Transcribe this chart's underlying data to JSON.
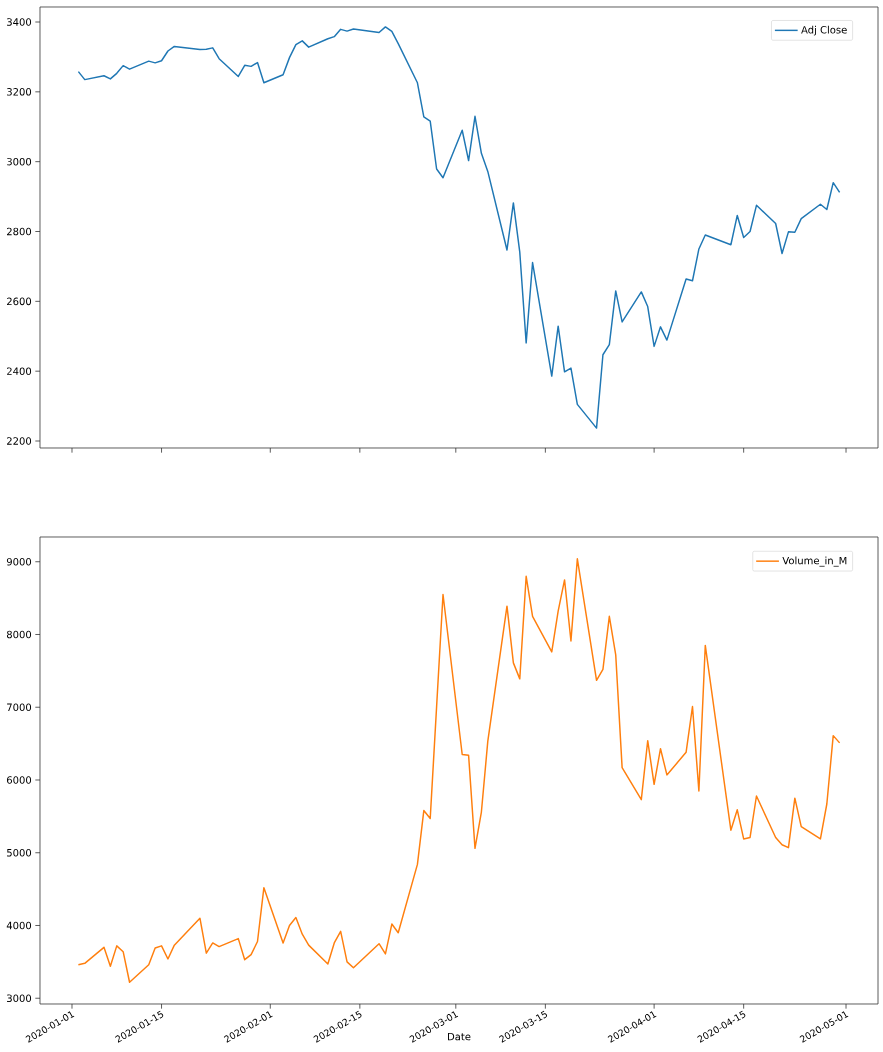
{
  "chart_data": [
    {
      "type": "line",
      "x": [
        "2020-01-02",
        "2020-01-03",
        "2020-01-06",
        "2020-01-07",
        "2020-01-08",
        "2020-01-09",
        "2020-01-10",
        "2020-01-13",
        "2020-01-14",
        "2020-01-15",
        "2020-01-16",
        "2020-01-17",
        "2020-01-21",
        "2020-01-22",
        "2020-01-23",
        "2020-01-24",
        "2020-01-27",
        "2020-01-28",
        "2020-01-29",
        "2020-01-30",
        "2020-01-31",
        "2020-02-03",
        "2020-02-04",
        "2020-02-05",
        "2020-02-06",
        "2020-02-07",
        "2020-02-10",
        "2020-02-11",
        "2020-02-12",
        "2020-02-13",
        "2020-02-14",
        "2020-02-18",
        "2020-02-19",
        "2020-02-20",
        "2020-02-21",
        "2020-02-24",
        "2020-02-25",
        "2020-02-26",
        "2020-02-27",
        "2020-02-28",
        "2020-03-02",
        "2020-03-03",
        "2020-03-04",
        "2020-03-05",
        "2020-03-06",
        "2020-03-09",
        "2020-03-10",
        "2020-03-11",
        "2020-03-12",
        "2020-03-13",
        "2020-03-16",
        "2020-03-17",
        "2020-03-18",
        "2020-03-19",
        "2020-03-20",
        "2020-03-23",
        "2020-03-24",
        "2020-03-25",
        "2020-03-26",
        "2020-03-27",
        "2020-03-30",
        "2020-03-31",
        "2020-04-01",
        "2020-04-02",
        "2020-04-03",
        "2020-04-06",
        "2020-04-07",
        "2020-04-08",
        "2020-04-09",
        "2020-04-13",
        "2020-04-14",
        "2020-04-15",
        "2020-04-16",
        "2020-04-17",
        "2020-04-20",
        "2020-04-21",
        "2020-04-22",
        "2020-04-23",
        "2020-04-24",
        "2020-04-27",
        "2020-04-28",
        "2020-04-29",
        "2020-04-30"
      ],
      "series": [
        {
          "name": "Adj Close",
          "color": "#1f77b4",
          "values": [
            3258,
            3235,
            3246,
            3237,
            3253,
            3275,
            3265,
            3288,
            3283,
            3289,
            3317,
            3330,
            3321,
            3322,
            3326,
            3295,
            3244,
            3276,
            3273,
            3284,
            3226,
            3249,
            3298,
            3335,
            3346,
            3328,
            3352,
            3358,
            3379,
            3374,
            3380,
            3370,
            3386,
            3373,
            3338,
            3226,
            3128,
            3116,
            2979,
            2954,
            3090,
            3003,
            3130,
            3024,
            2972,
            2747,
            2882,
            2741,
            2481,
            2711,
            2386,
            2529,
            2398,
            2409,
            2305,
            2237,
            2447,
            2476,
            2630,
            2541,
            2627,
            2585,
            2471,
            2527,
            2489,
            2664,
            2659,
            2750,
            2790,
            2762,
            2846,
            2783,
            2800,
            2875,
            2823,
            2737,
            2799,
            2798,
            2837,
            2878,
            2863,
            2940,
            2912
          ]
        }
      ],
      "xlim": [
        "2019-12-27",
        "2020-05-06"
      ],
      "xticks": [
        "2020-01-01",
        "2020-01-15",
        "2020-02-01",
        "2020-02-15",
        "2020-03-01",
        "2020-03-15",
        "2020-04-01",
        "2020-04-15",
        "2020-05-01"
      ],
      "ylim": [
        2180,
        3443
      ],
      "yticks": [
        2200,
        2400,
        2600,
        2800,
        3000,
        3200,
        3400
      ],
      "tick_labels": "y",
      "legend": "top right"
    },
    {
      "type": "line",
      "xlabel": "Date",
      "x": [
        "2020-01-02",
        "2020-01-03",
        "2020-01-06",
        "2020-01-07",
        "2020-01-08",
        "2020-01-09",
        "2020-01-10",
        "2020-01-13",
        "2020-01-14",
        "2020-01-15",
        "2020-01-16",
        "2020-01-17",
        "2020-01-21",
        "2020-01-22",
        "2020-01-23",
        "2020-01-24",
        "2020-01-27",
        "2020-01-28",
        "2020-01-29",
        "2020-01-30",
        "2020-01-31",
        "2020-02-03",
        "2020-02-04",
        "2020-02-05",
        "2020-02-06",
        "2020-02-07",
        "2020-02-10",
        "2020-02-11",
        "2020-02-12",
        "2020-02-13",
        "2020-02-14",
        "2020-02-18",
        "2020-02-19",
        "2020-02-20",
        "2020-02-21",
        "2020-02-24",
        "2020-02-25",
        "2020-02-26",
        "2020-02-27",
        "2020-02-28",
        "2020-03-02",
        "2020-03-03",
        "2020-03-04",
        "2020-03-05",
        "2020-03-06",
        "2020-03-09",
        "2020-03-10",
        "2020-03-11",
        "2020-03-12",
        "2020-03-13",
        "2020-03-16",
        "2020-03-17",
        "2020-03-18",
        "2020-03-19",
        "2020-03-20",
        "2020-03-23",
        "2020-03-24",
        "2020-03-25",
        "2020-03-26",
        "2020-03-27",
        "2020-03-30",
        "2020-03-31",
        "2020-04-01",
        "2020-04-02",
        "2020-04-03",
        "2020-04-06",
        "2020-04-07",
        "2020-04-08",
        "2020-04-09",
        "2020-04-13",
        "2020-04-14",
        "2020-04-15",
        "2020-04-16",
        "2020-04-17",
        "2020-04-20",
        "2020-04-21",
        "2020-04-22",
        "2020-04-23",
        "2020-04-24",
        "2020-04-27",
        "2020-04-28",
        "2020-04-29",
        "2020-04-30"
      ],
      "series": [
        {
          "name": "Volume_in_M",
          "color": "#ff7f0e",
          "values": [
            3460,
            3480,
            3700,
            3440,
            3720,
            3640,
            3220,
            3460,
            3690,
            3720,
            3540,
            3730,
            4100,
            3620,
            3760,
            3710,
            3820,
            3530,
            3600,
            3780,
            4520,
            3760,
            4000,
            4110,
            3880,
            3730,
            3470,
            3760,
            3920,
            3500,
            3420,
            3750,
            3610,
            4020,
            3900,
            4840,
            5580,
            5470,
            7010,
            8550,
            6350,
            6340,
            5060,
            5560,
            6530,
            8390,
            7610,
            7390,
            8800,
            8250,
            7760,
            8320,
            8750,
            7910,
            9040,
            7370,
            7520,
            8250,
            7720,
            6170,
            5730,
            6540,
            5940,
            6430,
            6070,
            6380,
            7010,
            5850,
            7850,
            5310,
            5590,
            5190,
            5210,
            5780,
            5210,
            5110,
            5070,
            5750,
            5360,
            5190,
            5670,
            6610,
            6510
          ]
        }
      ],
      "xlim": [
        "2019-12-27",
        "2020-05-06"
      ],
      "xticks": [
        "2020-01-01",
        "2020-01-15",
        "2020-02-01",
        "2020-02-15",
        "2020-03-01",
        "2020-03-15",
        "2020-04-01",
        "2020-04-15",
        "2020-05-01"
      ],
      "ylim": [
        2921,
        9340
      ],
      "yticks": [
        3000,
        4000,
        5000,
        6000,
        7000,
        8000,
        9000
      ],
      "legend": "top right"
    }
  ]
}
